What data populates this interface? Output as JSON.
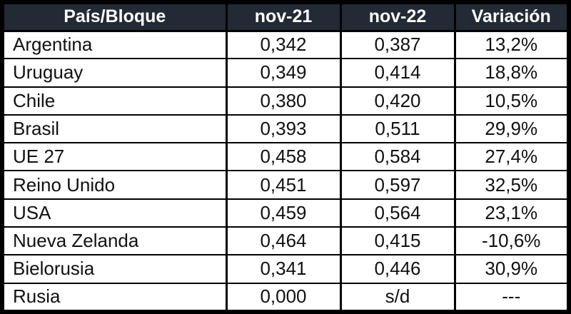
{
  "chart_data": {
    "type": "table",
    "title": "",
    "columns": [
      "País/Bloque",
      "nov-21",
      "nov-22",
      "Variación"
    ],
    "rows": [
      [
        "Argentina",
        "0,342",
        "0,387",
        "13,2%"
      ],
      [
        "Uruguay",
        "0,349",
        "0,414",
        "18,8%"
      ],
      [
        "Chile",
        "0,380",
        "0,420",
        "10,5%"
      ],
      [
        "Brasil",
        "0,393",
        "0,511",
        "29,9%"
      ],
      [
        "UE 27",
        "0,458",
        "0,584",
        "27,4%"
      ],
      [
        "Reino Unido",
        "0,451",
        "0,597",
        "32,5%"
      ],
      [
        "USA",
        "0,459",
        "0,564",
        "23,1%"
      ],
      [
        "Nueva Zelanda",
        "0,464",
        "0,415",
        "-10,6%"
      ],
      [
        "Bielorusia",
        "0,341",
        "0,446",
        "30,9%"
      ],
      [
        "Rusia",
        "0,000",
        "s/d",
        "---"
      ]
    ]
  },
  "colors": {
    "header_bg": "#222a35",
    "header_text": "#ffffff",
    "border": "#000000",
    "cell_bg": "#ffffff",
    "cell_text": "#111111"
  }
}
